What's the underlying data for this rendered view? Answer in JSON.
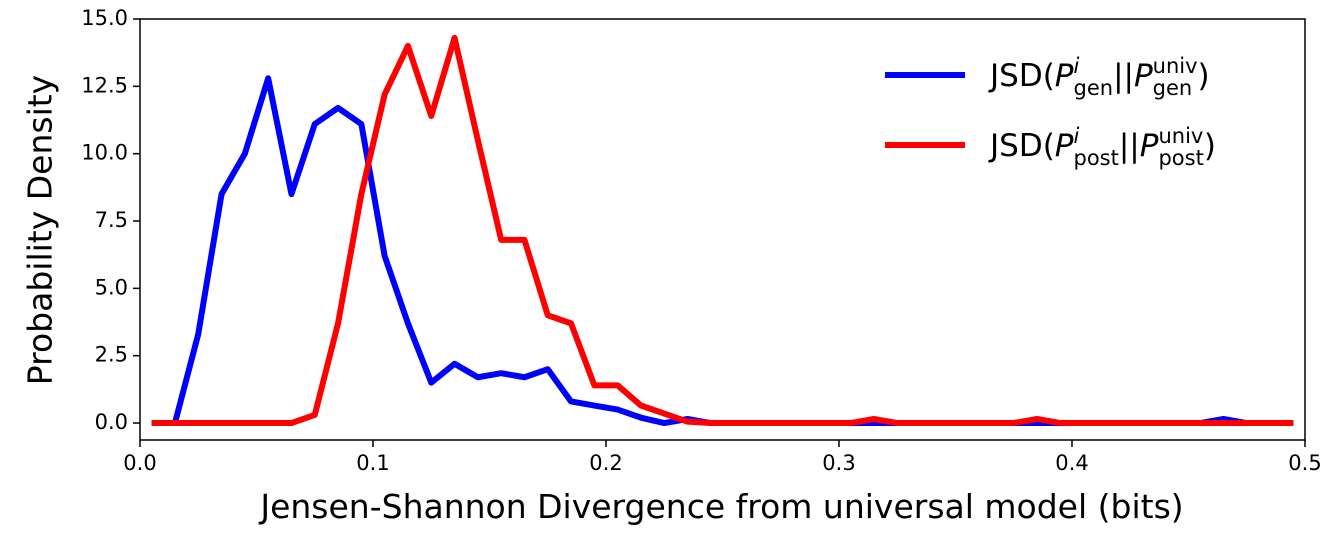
{
  "chart_data": {
    "type": "line",
    "x_label": "Jensen-Shannon Divergence from universal model (bits)",
    "y_label": "Probability Density",
    "x": [
      0.005,
      0.015,
      0.025,
      0.035,
      0.045,
      0.055,
      0.065,
      0.075,
      0.085,
      0.095,
      0.105,
      0.115,
      0.125,
      0.135,
      0.145,
      0.155,
      0.165,
      0.175,
      0.185,
      0.195,
      0.205,
      0.215,
      0.225,
      0.235,
      0.245,
      0.255,
      0.265,
      0.275,
      0.285,
      0.295,
      0.305,
      0.315,
      0.325,
      0.335,
      0.345,
      0.355,
      0.365,
      0.375,
      0.385,
      0.395,
      0.405,
      0.415,
      0.425,
      0.435,
      0.445,
      0.455,
      0.465,
      0.475,
      0.485,
      0.495
    ],
    "series": [
      {
        "name": "JSD(P^{i}_{gen}||P^{univ}_{gen})",
        "color": "#0000ff",
        "values": [
          0,
          0,
          3.3,
          8.5,
          10.0,
          12.8,
          8.5,
          11.1,
          11.7,
          11.1,
          6.2,
          3.7,
          1.5,
          2.2,
          1.7,
          1.85,
          1.7,
          2.0,
          0.8,
          0.65,
          0.5,
          0.2,
          0,
          0.15,
          0,
          0,
          0,
          0,
          0,
          0,
          0,
          0,
          0,
          0,
          0,
          0,
          0,
          0,
          0,
          0,
          0,
          0,
          0,
          0,
          0,
          0,
          0.15,
          0,
          0,
          0
        ]
      },
      {
        "name": "JSD(P^{i}_{post}||P^{univ}_{post})",
        "color": "#ff0000",
        "values": [
          0,
          0,
          0,
          0,
          0,
          0,
          0,
          0.3,
          3.7,
          8.5,
          12.2,
          14.0,
          11.4,
          14.3,
          10.5,
          6.8,
          6.8,
          4.0,
          3.7,
          1.4,
          1.4,
          0.65,
          0.35,
          0.05,
          0,
          0,
          0,
          0,
          0,
          0,
          0,
          0.15,
          0,
          0,
          0,
          0,
          0,
          0,
          0.15,
          0,
          0,
          0,
          0,
          0,
          0,
          0,
          0,
          0,
          0,
          0
        ]
      }
    ],
    "xlim": [
      0,
      0.5
    ],
    "ylim": [
      -0.63,
      15
    ],
    "xticks": [
      {
        "value": 0,
        "label": "0.0"
      },
      0.1,
      0.2,
      0.3,
      0.4,
      0.5
    ],
    "yticks": [
      {
        "value": 0,
        "label": "0.0"
      },
      2.5,
      {
        "value": 5,
        "label": "5.0"
      },
      7.5,
      {
        "value": 10,
        "label": "10.0"
      },
      12.5,
      {
        "value": 15,
        "label": "15.0"
      }
    ],
    "legend": "upper right"
  }
}
